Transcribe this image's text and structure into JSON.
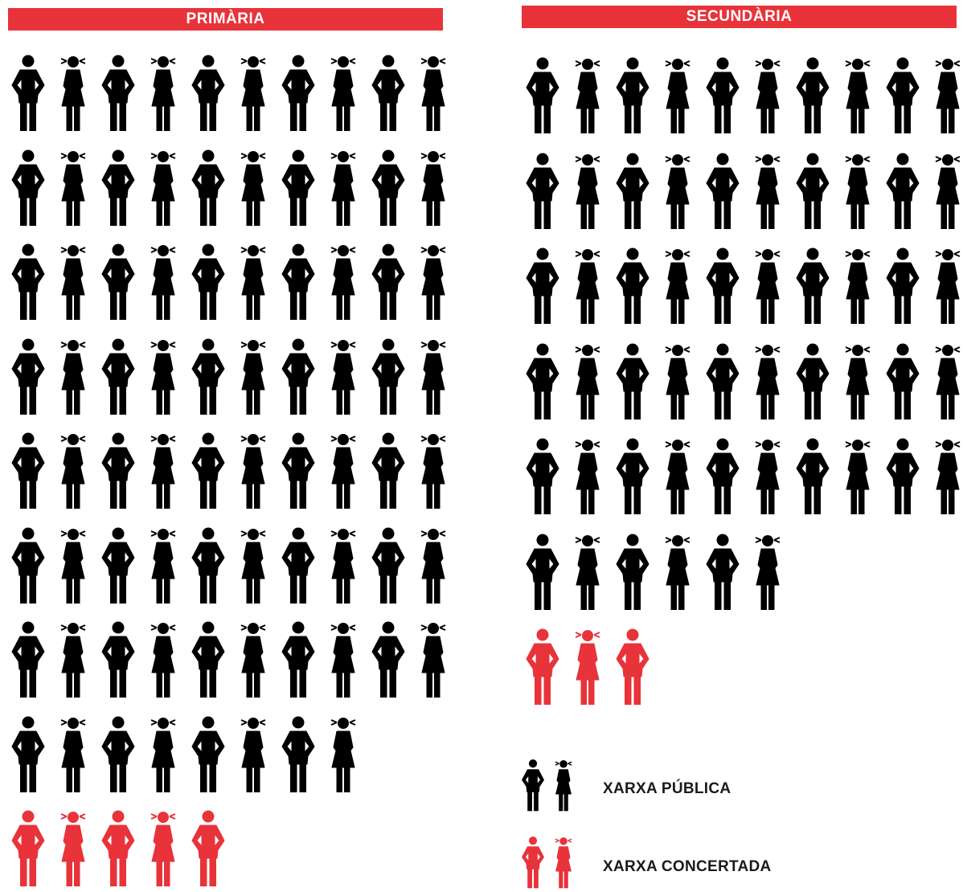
{
  "colors": {
    "public": "#000000",
    "concertada": "#e8333a",
    "header_bg": "#e8333a"
  },
  "headers": {
    "primaria": "PRIMÀRIA",
    "secundaria": "SECUNDÀRIA"
  },
  "legend": {
    "public_label": "XARXA PÚBLICA",
    "concertada_label": "XARXA CONCERTADA"
  },
  "chart_data": [
    {
      "type": "pictogram",
      "title": "PRIMÀRIA",
      "series": [
        {
          "name": "XARXA PÚBLICA",
          "count": 78
        },
        {
          "name": "XARXA CONCERTADA",
          "count": 5
        }
      ],
      "icons_per_row": 10,
      "icon_pattern": [
        "male",
        "female"
      ]
    },
    {
      "type": "pictogram",
      "title": "SECUNDÀRIA",
      "series": [
        {
          "name": "XARXA PÚBLICA",
          "count": 56
        },
        {
          "name": "XARXA CONCERTADA",
          "count": 3
        }
      ],
      "icons_per_row": 10,
      "icon_pattern": [
        "male",
        "female"
      ]
    }
  ]
}
